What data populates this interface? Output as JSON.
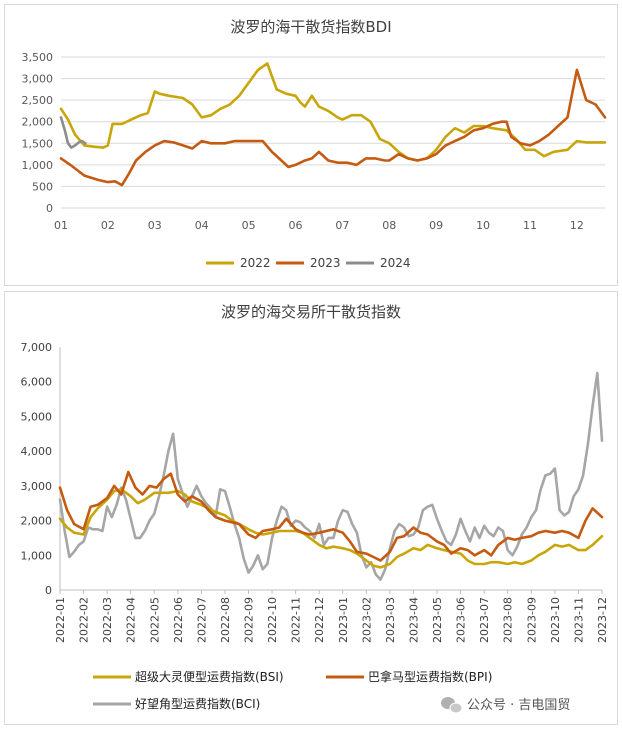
{
  "chart_data": [
    {
      "type": "line",
      "title": "波罗的海干散货指数BDI",
      "xlabel": "",
      "ylabel": "",
      "x_ticks": [
        "01",
        "02",
        "03",
        "04",
        "05",
        "06",
        "07",
        "08",
        "09",
        "10",
        "11",
        "12"
      ],
      "x_range": [
        1,
        12.6
      ],
      "ylim": [
        0,
        3500
      ],
      "y_ticks": [
        "0",
        "500",
        "1,000",
        "1,500",
        "2,000",
        "2,500",
        "3,000",
        "3,500"
      ],
      "y_tick_values": [
        0,
        500,
        1000,
        1500,
        2000,
        2500,
        3000,
        3500
      ],
      "legend_position": "bottom",
      "series": [
        {
          "name": "2022",
          "color": "#c8a60a",
          "x": [
            1.0,
            1.15,
            1.3,
            1.5,
            1.7,
            1.9,
            2.0,
            2.1,
            2.3,
            2.5,
            2.7,
            2.85,
            3.0,
            3.1,
            3.3,
            3.6,
            3.8,
            4.0,
            4.2,
            4.4,
            4.6,
            4.8,
            5.0,
            5.2,
            5.4,
            5.6,
            5.8,
            6.0,
            6.1,
            6.2,
            6.35,
            6.5,
            6.7,
            6.9,
            7.0,
            7.2,
            7.4,
            7.6,
            7.8,
            8.0,
            8.2,
            8.4,
            8.6,
            8.8,
            9.0,
            9.2,
            9.4,
            9.6,
            9.8,
            10.0,
            10.2,
            10.5,
            10.7,
            10.9,
            11.1,
            11.3,
            11.5,
            11.8,
            12.0,
            12.2,
            12.6
          ],
          "y": [
            2300,
            2050,
            1700,
            1450,
            1420,
            1400,
            1450,
            1950,
            1950,
            2050,
            2150,
            2200,
            2700,
            2650,
            2600,
            2550,
            2400,
            2100,
            2150,
            2300,
            2400,
            2600,
            2900,
            3200,
            3350,
            2750,
            2650,
            2600,
            2450,
            2350,
            2600,
            2350,
            2250,
            2100,
            2050,
            2150,
            2150,
            2000,
            1600,
            1500,
            1300,
            1150,
            1100,
            1150,
            1350,
            1650,
            1850,
            1750,
            1900,
            1900,
            1850,
            1800,
            1600,
            1350,
            1350,
            1200,
            1300,
            1350,
            1550,
            1520,
            1520
          ]
        },
        {
          "name": "2023",
          "color": "#c55a11",
          "x": [
            1.0,
            1.2,
            1.5,
            1.8,
            2.0,
            2.15,
            2.3,
            2.45,
            2.6,
            2.8,
            3.0,
            3.2,
            3.4,
            3.6,
            3.8,
            4.0,
            4.2,
            4.5,
            4.7,
            5.0,
            5.3,
            5.5,
            5.7,
            5.85,
            6.0,
            6.1,
            6.2,
            6.35,
            6.5,
            6.7,
            6.9,
            7.1,
            7.3,
            7.5,
            7.7,
            7.9,
            8.0,
            8.2,
            8.4,
            8.6,
            8.8,
            9.0,
            9.2,
            9.4,
            9.6,
            9.8,
            10.0,
            10.2,
            10.4,
            10.5,
            10.6,
            10.8,
            11.0,
            11.2,
            11.4,
            11.6,
            11.8,
            12.0,
            12.2,
            12.4,
            12.6
          ],
          "y": [
            1150,
            1000,
            750,
            650,
            600,
            620,
            530,
            800,
            1100,
            1300,
            1450,
            1550,
            1520,
            1450,
            1380,
            1550,
            1500,
            1500,
            1550,
            1550,
            1550,
            1300,
            1100,
            950,
            1000,
            1050,
            1100,
            1150,
            1300,
            1100,
            1050,
            1050,
            1000,
            1150,
            1150,
            1100,
            1100,
            1250,
            1150,
            1100,
            1150,
            1250,
            1450,
            1550,
            1650,
            1800,
            1850,
            1950,
            2000,
            2000,
            1650,
            1500,
            1450,
            1550,
            1700,
            1900,
            2100,
            3200,
            2500,
            2400,
            2100
          ]
        },
        {
          "name": "2024",
          "color": "#8c8c8c",
          "x": [
            1.0,
            1.08,
            1.15,
            1.22,
            1.3,
            1.38,
            1.45,
            1.52
          ],
          "y": [
            2100,
            1800,
            1500,
            1400,
            1450,
            1520,
            1550,
            1500
          ]
        }
      ]
    },
    {
      "type": "line",
      "title": "波罗的海交易所干散货指数",
      "xlabel": "",
      "ylabel": "",
      "x_ticks": [
        "2022-01",
        "2022-02",
        "2022-03",
        "2022-04",
        "2022-05",
        "2022-06",
        "2022-07",
        "2022-08",
        "2022-09",
        "2022-10",
        "2022-11",
        "2022-12",
        "2023-01",
        "2023-02",
        "2023-03",
        "2023-04",
        "2023-05",
        "2023-06",
        "2023-07",
        "2023-08",
        "2023-09",
        "2023-10",
        "2023-11",
        "2023-12"
      ],
      "x_range": [
        0,
        23.0
      ],
      "ylim": [
        0,
        7000
      ],
      "y_ticks": [
        "0",
        "1,000",
        "2,000",
        "3,000",
        "4,000",
        "5,000",
        "6,000",
        "7,000"
      ],
      "y_tick_values": [
        0,
        1000,
        2000,
        3000,
        4000,
        5000,
        6000,
        7000
      ],
      "legend_position": "bottom",
      "series": [
        {
          "name": "超级大灵便型运费指数(BSI)",
          "color": "#c8a60a",
          "x": [
            0,
            0.3,
            0.6,
            1.0,
            1.3,
            1.6,
            2.0,
            2.3,
            2.6,
            3.0,
            3.3,
            3.6,
            4.0,
            4.3,
            4.6,
            5.0,
            5.3,
            5.6,
            6.0,
            6.3,
            6.6,
            7.0,
            7.3,
            7.6,
            8.0,
            8.3,
            8.6,
            9.0,
            9.3,
            9.6,
            10.0,
            10.3,
            10.6,
            11.0,
            11.3,
            11.6,
            12.0,
            12.3,
            12.6,
            13.0,
            13.3,
            13.6,
            14.0,
            14.3,
            14.6,
            15.0,
            15.3,
            15.6,
            16.0,
            16.3,
            16.6,
            17.0,
            17.3,
            17.6,
            18.0,
            18.3,
            18.6,
            19.0,
            19.3,
            19.6,
            20.0,
            20.3,
            20.6,
            21.0,
            21.3,
            21.6,
            22.0,
            22.3,
            22.6,
            23.0
          ],
          "y": [
            2050,
            1800,
            1650,
            1600,
            2100,
            2350,
            2600,
            2850,
            2900,
            2700,
            2500,
            2600,
            2800,
            2800,
            2800,
            2850,
            2750,
            2550,
            2450,
            2350,
            2250,
            2150,
            2000,
            1900,
            1750,
            1650,
            1600,
            1650,
            1700,
            1700,
            1700,
            1650,
            1500,
            1300,
            1200,
            1250,
            1200,
            1150,
            1050,
            850,
            700,
            650,
            750,
            950,
            1050,
            1200,
            1150,
            1300,
            1200,
            1150,
            1100,
            1050,
            850,
            750,
            750,
            800,
            800,
            750,
            800,
            750,
            850,
            1000,
            1100,
            1300,
            1250,
            1300,
            1150,
            1150,
            1300,
            1550
          ]
        },
        {
          "name": "巴拿马型运费指数(BPI)",
          "color": "#c55a11",
          "x": [
            0,
            0.3,
            0.6,
            1.0,
            1.3,
            1.6,
            2.0,
            2.3,
            2.6,
            2.9,
            3.2,
            3.5,
            3.8,
            4.1,
            4.4,
            4.7,
            5.0,
            5.3,
            5.6,
            6.0,
            6.3,
            6.6,
            7.0,
            7.3,
            7.6,
            8.0,
            8.3,
            8.6,
            9.0,
            9.3,
            9.6,
            10.0,
            10.3,
            10.6,
            11.0,
            11.3,
            11.6,
            12.0,
            12.3,
            12.6,
            13.0,
            13.3,
            13.6,
            14.0,
            14.3,
            14.6,
            15.0,
            15.3,
            15.6,
            16.0,
            16.3,
            16.6,
            17.0,
            17.3,
            17.6,
            18.0,
            18.3,
            18.6,
            19.0,
            19.3,
            19.6,
            20.0,
            20.3,
            20.6,
            21.0,
            21.3,
            21.6,
            22.0,
            22.3,
            22.6,
            23.0
          ],
          "y": [
            2950,
            2300,
            1900,
            1750,
            2400,
            2450,
            2650,
            3000,
            2750,
            3400,
            2950,
            2750,
            3000,
            2950,
            3200,
            3350,
            2750,
            2550,
            2700,
            2550,
            2300,
            2100,
            2000,
            1950,
            1900,
            1600,
            1500,
            1700,
            1750,
            1800,
            2050,
            1750,
            1650,
            1600,
            1650,
            1700,
            1750,
            1650,
            1400,
            1100,
            1050,
            950,
            850,
            1100,
            1500,
            1550,
            1800,
            1650,
            1600,
            1400,
            1300,
            1050,
            1200,
            1150,
            1000,
            1150,
            1000,
            1300,
            1500,
            1450,
            1500,
            1550,
            1650,
            1700,
            1650,
            1700,
            1650,
            1500,
            2000,
            2350,
            2100
          ]
        },
        {
          "name": "好望角型运费指数(BCI)",
          "color": "#a6a6a6",
          "x": [
            0,
            0.2,
            0.4,
            0.6,
            0.8,
            1.0,
            1.2,
            1.4,
            1.6,
            1.8,
            2.0,
            2.2,
            2.4,
            2.6,
            2.8,
            3.0,
            3.2,
            3.4,
            3.6,
            3.8,
            4.0,
            4.2,
            4.4,
            4.6,
            4.8,
            5.0,
            5.2,
            5.4,
            5.6,
            5.8,
            6.0,
            6.2,
            6.4,
            6.6,
            6.8,
            7.0,
            7.2,
            7.4,
            7.6,
            7.8,
            8.0,
            8.2,
            8.4,
            8.6,
            8.8,
            9.0,
            9.2,
            9.4,
            9.6,
            9.8,
            10.0,
            10.2,
            10.4,
            10.6,
            10.8,
            11.0,
            11.2,
            11.4,
            11.6,
            11.8,
            12.0,
            12.2,
            12.4,
            12.6,
            12.8,
            13.0,
            13.2,
            13.4,
            13.6,
            13.8,
            14.0,
            14.2,
            14.4,
            14.6,
            14.8,
            15.0,
            15.2,
            15.4,
            15.6,
            15.8,
            16.0,
            16.2,
            16.4,
            16.6,
            16.8,
            17.0,
            17.2,
            17.4,
            17.6,
            17.8,
            18.0,
            18.2,
            18.4,
            18.6,
            18.8,
            19.0,
            19.2,
            19.4,
            19.6,
            19.8,
            20.0,
            20.2,
            20.4,
            20.6,
            20.8,
            21.0,
            21.2,
            21.4,
            21.6,
            21.8,
            22.0,
            22.2,
            22.4,
            22.6,
            22.8,
            23.0
          ],
          "y": [
            2600,
            1700,
            950,
            1100,
            1300,
            1400,
            1800,
            1750,
            1750,
            1700,
            2400,
            2100,
            2450,
            2950,
            2600,
            2050,
            1500,
            1500,
            1700,
            2000,
            2200,
            2700,
            3300,
            4000,
            4500,
            3200,
            2800,
            2400,
            2700,
            3000,
            2700,
            2500,
            2350,
            2100,
            2900,
            2850,
            2400,
            1900,
            1500,
            900,
            500,
            700,
            1000,
            600,
            750,
            1500,
            2000,
            2400,
            2300,
            1850,
            2000,
            1950,
            1800,
            1700,
            1500,
            1900,
            1300,
            1500,
            1500,
            2000,
            2300,
            2250,
            1900,
            1650,
            1000,
            650,
            800,
            450,
            300,
            600,
            1200,
            1700,
            1900,
            1800,
            1550,
            1600,
            1800,
            2300,
            2400,
            2450,
            2050,
            1700,
            1400,
            1300,
            1600,
            2050,
            1700,
            1400,
            1800,
            1500,
            1850,
            1650,
            1550,
            1800,
            1700,
            1150,
            1000,
            1250,
            1600,
            1800,
            2100,
            2300,
            2900,
            3300,
            3350,
            3500,
            2300,
            2150,
            2250,
            2700,
            2900,
            3300,
            4200,
            5300,
            6250,
            4300
          ]
        }
      ]
    }
  ],
  "watermark": {
    "icon": "wechat-icon",
    "text": "公众号 · 吉电国贸"
  }
}
